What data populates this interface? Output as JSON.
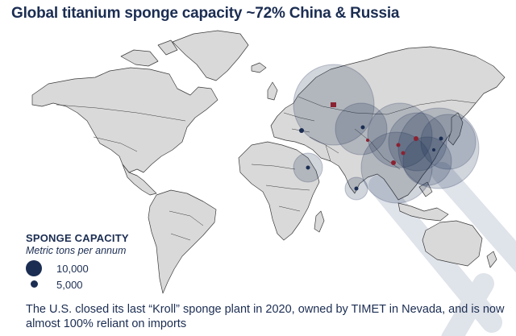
{
  "title": "Global titanium sponge capacity ~72% China & Russia",
  "legend": {
    "title": "SPONGE CAPACITY",
    "subtitle": "Metric tons per annum",
    "items": [
      {
        "label": "10,000",
        "capacity": 10000
      },
      {
        "label": "5,000",
        "capacity": 5000
      }
    ]
  },
  "footnote": "The U.S. closed its last “Kroll” sponge plant in 2020, owned by TIMET in Nevada, and is now almost 100% reliant on imports",
  "colors": {
    "title": "#1b2d52",
    "land": "#d9d9d9",
    "border": "#333333",
    "bubble": "#1b2d52",
    "bubble_fill_alpha": 0.22,
    "marker": "#8b2231",
    "plant_dot": "#1b2d52",
    "decor_band": "#dfe3ea"
  },
  "map_points": [
    {
      "region": "Russia (Urals)",
      "kind": "bubble",
      "relative_size": 1.0
    },
    {
      "region": "Russia (Urals)",
      "kind": "plant-marker"
    },
    {
      "region": "Kazakhstan",
      "kind": "bubble",
      "relative_size": 0.55
    },
    {
      "region": "Kazakhstan",
      "kind": "plant-dot"
    },
    {
      "region": "Ukraine",
      "kind": "plant-dot"
    },
    {
      "region": "Northern China",
      "kind": "bubble",
      "relative_size": 0.8
    },
    {
      "region": "Northeast China",
      "kind": "bubble",
      "relative_size": 0.9
    },
    {
      "region": "Northeast China",
      "kind": "plant-marker"
    },
    {
      "region": "Central China",
      "kind": "bubble",
      "relative_size": 0.75
    },
    {
      "region": "Central China",
      "kind": "plant-marker"
    },
    {
      "region": "Southwest China",
      "kind": "bubble",
      "relative_size": 0.7
    },
    {
      "region": "Southwest China",
      "kind": "plant-marker"
    },
    {
      "region": "China",
      "kind": "bubble",
      "relative_size": 0.6
    },
    {
      "region": "Japan",
      "kind": "bubble",
      "relative_size": 0.8
    },
    {
      "region": "Japan",
      "kind": "plant-dot"
    },
    {
      "region": "Saudi Arabia",
      "kind": "bubble",
      "relative_size": 0.3
    },
    {
      "region": "Saudi Arabia",
      "kind": "plant-dot"
    },
    {
      "region": "India",
      "kind": "bubble",
      "relative_size": 0.25
    },
    {
      "region": "India",
      "kind": "plant-dot"
    }
  ]
}
